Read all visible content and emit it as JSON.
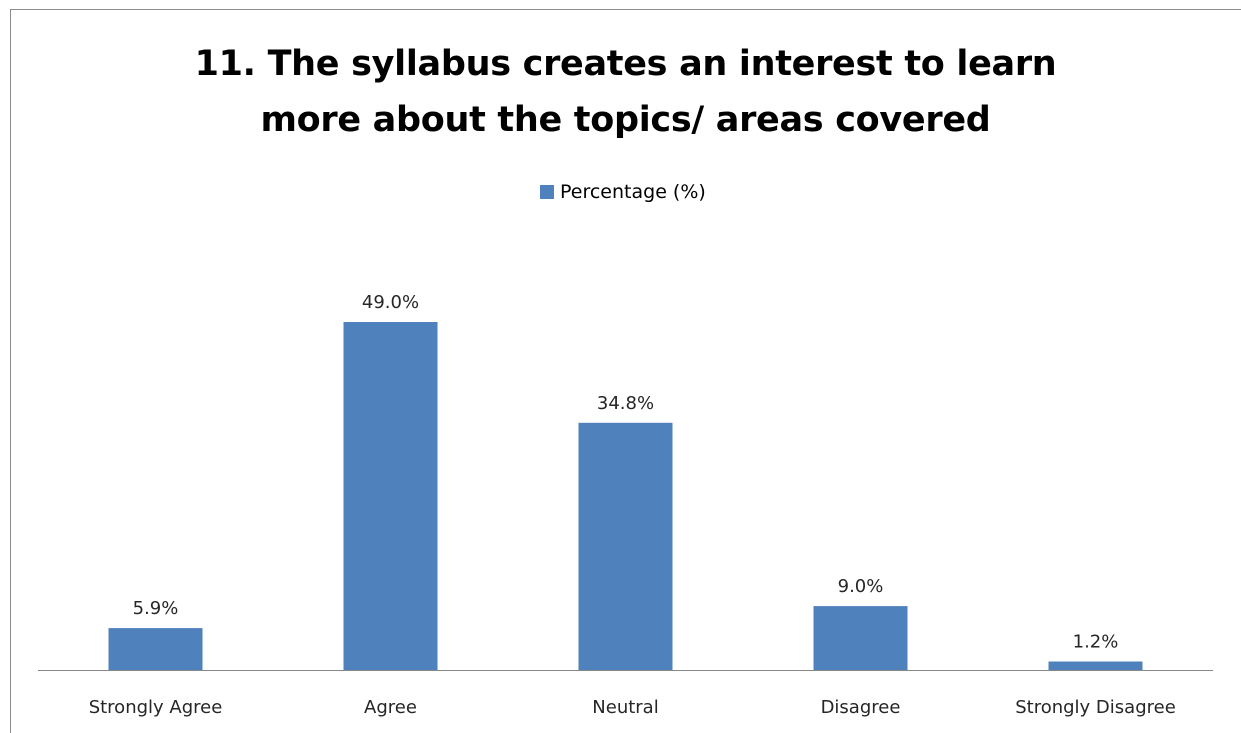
{
  "chart_data": {
    "type": "bar",
    "title_lines": [
      "11. The syllabus creates an interest to learn",
      "more about the topics/ areas covered"
    ],
    "categories": [
      "Strongly Agree",
      "Agree",
      "Neutral",
      "Disagree",
      "Strongly Disagree"
    ],
    "series": [
      {
        "name": "Percentage (%)",
        "values": [
          5.9,
          49.0,
          34.8,
          9.0,
          1.2
        ],
        "data_labels": [
          "5.9%",
          "49.0%",
          "34.8%",
          "9.0%",
          "1.2%"
        ]
      }
    ],
    "ylim": [
      0,
      60
    ],
    "grid": false,
    "legend_position": "top",
    "colors": {
      "bar": "#4f81bd",
      "axis": "#888888",
      "border": "#8c8c8c"
    }
  }
}
